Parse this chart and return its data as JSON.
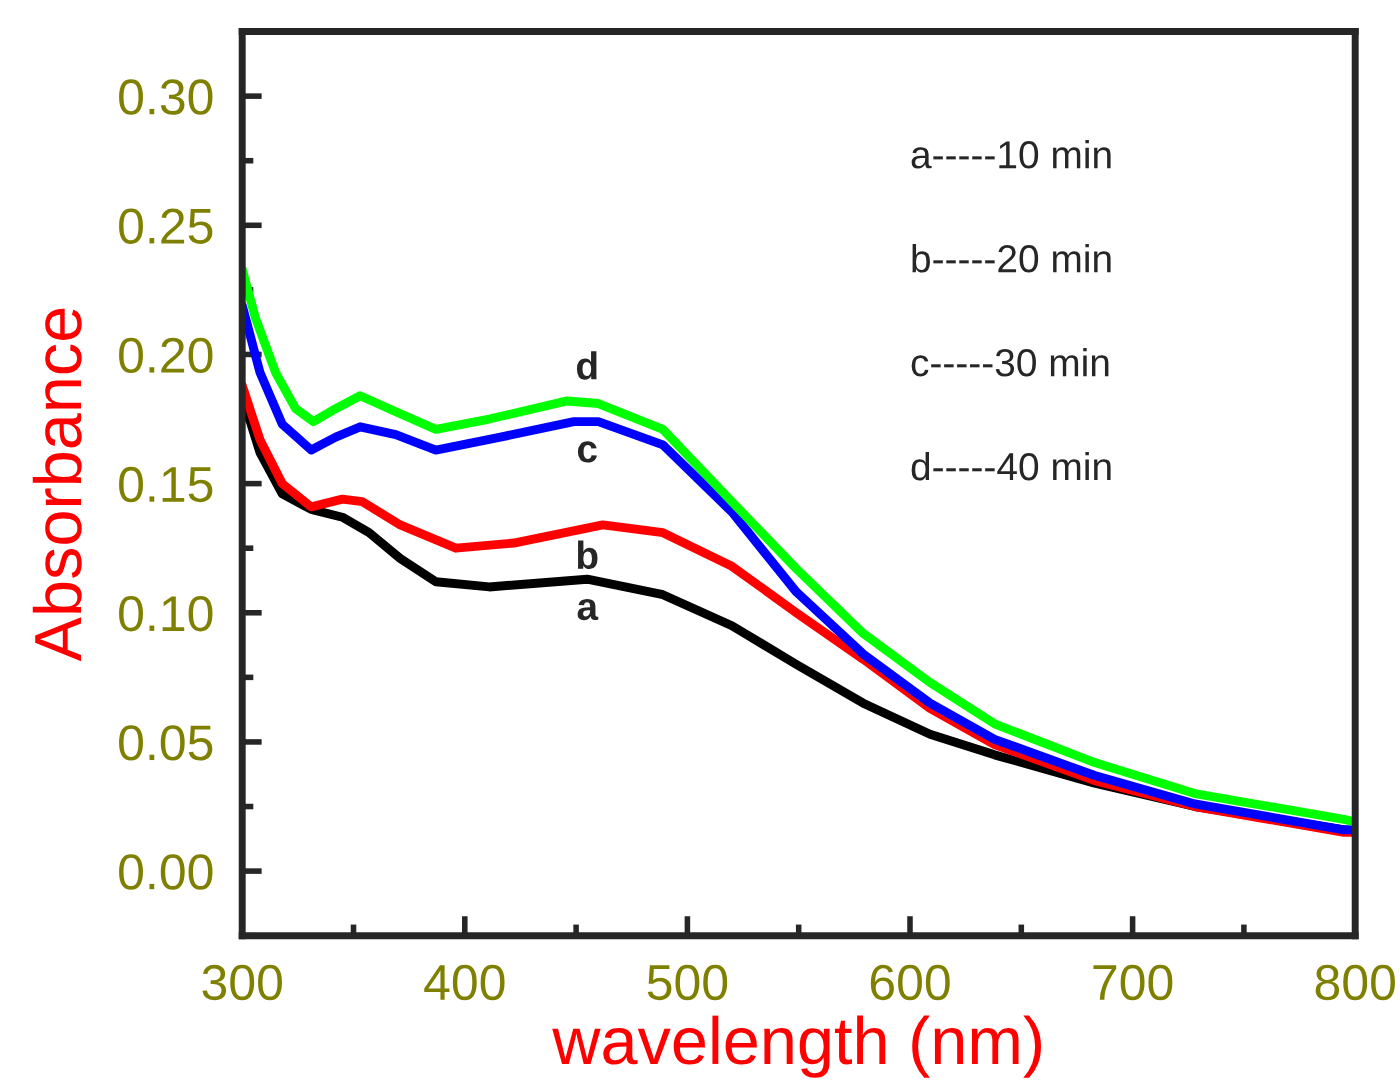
{
  "chart_data": {
    "type": "line",
    "xlabel": "wavelength (nm)",
    "ylabel": "Absorbance",
    "xlim": [
      300,
      800
    ],
    "ylim": [
      -0.025,
      0.325
    ],
    "xticks": [
      300,
      400,
      500,
      600,
      700,
      800
    ],
    "yticks": [
      {
        "value": 0,
        "label": "0.00"
      },
      {
        "value": 0.05,
        "label": "0.05"
      },
      {
        "value": 0.1,
        "label": "0.10"
      },
      {
        "value": 0.15,
        "label": "0.15"
      },
      {
        "value": 0.2,
        "label": "0.20"
      },
      {
        "value": 0.25,
        "label": "0.25"
      },
      {
        "value": 0.3,
        "label": "0.30"
      }
    ],
    "grid": false,
    "legend": false,
    "marker": "none",
    "line_style": "solid",
    "series": [
      {
        "name": "a",
        "color": "#000000",
        "x": [
          300,
          308,
          318,
          331,
          345,
          357,
          371,
          387,
          411,
          455,
          489,
          520,
          549,
          579,
          609,
          638,
          683,
          728,
          795,
          800
        ],
        "values": [
          0.184,
          0.162,
          0.146,
          0.14,
          0.137,
          0.131,
          0.121,
          0.112,
          0.11,
          0.113,
          0.107,
          0.095,
          0.08,
          0.065,
          0.053,
          0.045,
          0.034,
          0.025,
          0.016,
          0.015
        ]
      },
      {
        "name": "b",
        "color": "#ff0000",
        "x": [
          300,
          308,
          318,
          331,
          345,
          354,
          371,
          396,
          422,
          462,
          489,
          520,
          549,
          579,
          609,
          638,
          683,
          728,
          795,
          800
        ],
        "values": [
          0.188,
          0.167,
          0.15,
          0.141,
          0.144,
          0.143,
          0.134,
          0.125,
          0.127,
          0.134,
          0.131,
          0.118,
          0.1,
          0.082,
          0.063,
          0.049,
          0.035,
          0.025,
          0.015,
          0.015
        ]
      },
      {
        "name": "c",
        "color": "#0000ff",
        "x": [
          300,
          308,
          318,
          331,
          342,
          353,
          369,
          387,
          416,
          449,
          460,
          489,
          520,
          549,
          579,
          609,
          638,
          683,
          728,
          795,
          800
        ],
        "values": [
          0.219,
          0.193,
          0.173,
          0.163,
          0.168,
          0.172,
          0.169,
          0.163,
          0.168,
          0.174,
          0.174,
          0.165,
          0.139,
          0.108,
          0.084,
          0.065,
          0.051,
          0.037,
          0.026,
          0.016,
          0.016
        ]
      },
      {
        "name": "d",
        "color": "#00ff00",
        "x": [
          300,
          306,
          315,
          324,
          332,
          342,
          353,
          366,
          387,
          411,
          446,
          460,
          489,
          520,
          549,
          579,
          609,
          638,
          683,
          728,
          795,
          800
        ],
        "values": [
          0.233,
          0.214,
          0.193,
          0.179,
          0.174,
          0.179,
          0.184,
          0.179,
          0.171,
          0.175,
          0.182,
          0.181,
          0.171,
          0.143,
          0.117,
          0.092,
          0.073,
          0.057,
          0.042,
          0.03,
          0.02,
          0.019
        ]
      }
    ],
    "annotations": [
      "a-----10 min",
      "b-----20 min",
      "c-----30 min",
      "d-----40 min"
    ]
  }
}
